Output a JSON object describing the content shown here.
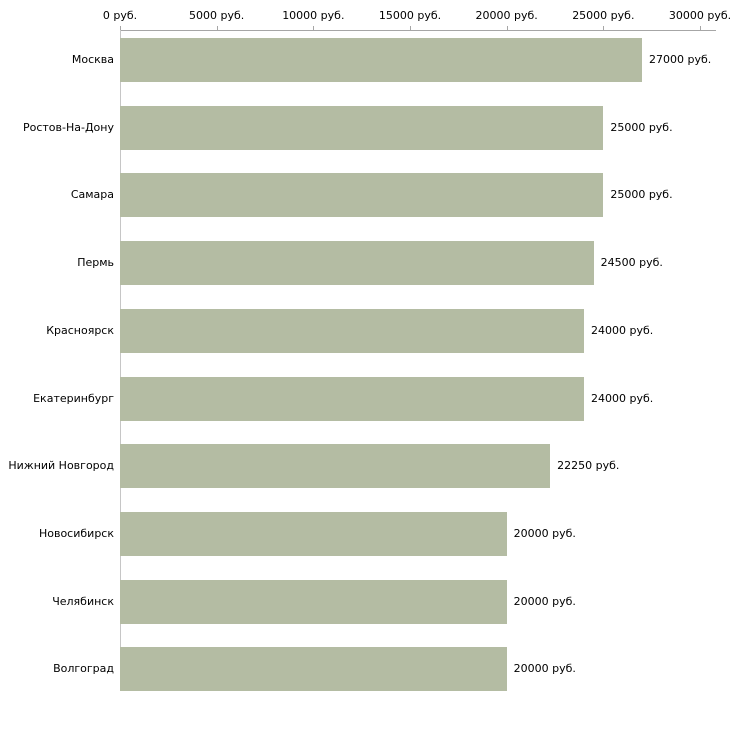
{
  "chart_data": {
    "type": "bar",
    "orientation": "horizontal",
    "title": "",
    "xlabel": "",
    "ylabel": "",
    "categories": [
      "Москва",
      "Ростов-На-Дону",
      "Самара",
      "Пермь",
      "Красноярск",
      "Екатеринбург",
      "Нижний Новгород",
      "Новосибирск",
      "Челябинск",
      "Волгоград"
    ],
    "values": [
      27000,
      25000,
      25000,
      24500,
      24000,
      24000,
      22250,
      20000,
      20000,
      20000
    ],
    "value_labels": [
      "27000 руб.",
      "25000 руб.",
      "25000 руб.",
      "24500 руб.",
      "24000 руб.",
      "24000 руб.",
      "22250 руб.",
      "20000 руб.",
      "20000 руб.",
      "20000 руб."
    ],
    "x_ticks": [
      0,
      5000,
      10000,
      15000,
      20000,
      25000,
      30000
    ],
    "x_tick_labels": [
      "0 руб.",
      "5000 руб.",
      "10000 руб.",
      "15000 руб.",
      "20000 руб.",
      "25000 руб.",
      "30000 руб."
    ],
    "xlim": [
      0,
      30000
    ],
    "grid": false,
    "legend": false,
    "bar_color": "#b4bca3",
    "axis_color": "#a6a6a6",
    "text_color": "#000000"
  }
}
